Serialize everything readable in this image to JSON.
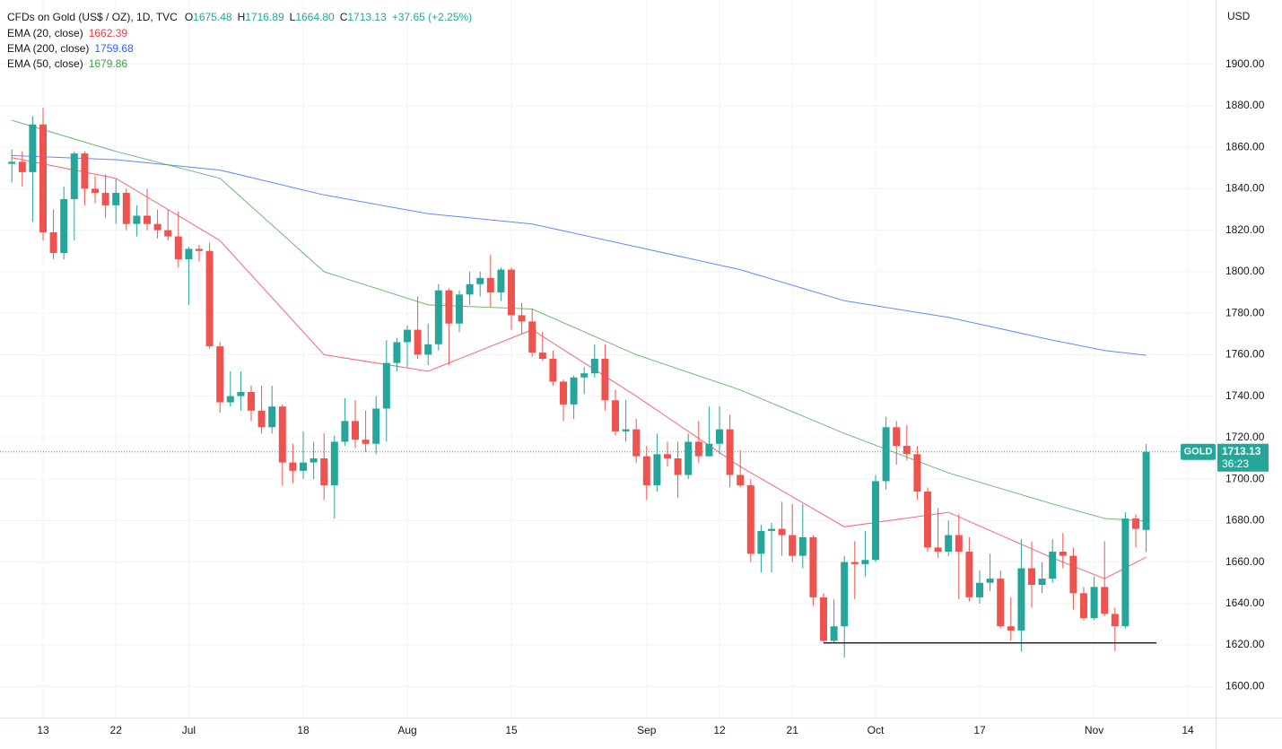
{
  "chart_data": {
    "type": "candlestick",
    "title": "CFDs on Gold (US$ / OZ), 1D, TVC",
    "legend_ohlc": [
      {
        "key": "O",
        "value": "1675.48"
      },
      {
        "key": "H",
        "value": "1716.89"
      },
      {
        "key": "L",
        "value": "1664.80"
      },
      {
        "key": "C",
        "value": "1713.13"
      }
    ],
    "change_label": "+37.65 (+2.25%)",
    "currency": "USD",
    "symbol_tag": "GOLD",
    "countdown": "36:23",
    "up_color": "#26a69a",
    "down_color": "#ef5350",
    "grid": true,
    "categories": [
      null,
      null,
      null,
      "13",
      null,
      null,
      null,
      null,
      null,
      null,
      "22",
      null,
      null,
      null,
      null,
      null,
      null,
      "Jul",
      null,
      null,
      null,
      null,
      null,
      null,
      null,
      null,
      null,
      null,
      "18",
      null,
      null,
      null,
      null,
      null,
      null,
      null,
      null,
      null,
      "Aug",
      null,
      null,
      null,
      null,
      null,
      null,
      null,
      null,
      null,
      "15",
      null,
      null,
      null,
      null,
      null,
      null,
      null,
      null,
      null,
      null,
      null,
      null,
      "Sep",
      null,
      null,
      null,
      null,
      null,
      null,
      "12",
      null,
      null,
      null,
      null,
      null,
      null,
      "21",
      null,
      null,
      null,
      null,
      null,
      null,
      null,
      "Oct",
      null,
      null,
      null,
      null,
      null,
      null,
      null,
      null,
      null,
      "17",
      null,
      null,
      null,
      null,
      null,
      null,
      null,
      null,
      null,
      null,
      "Nov",
      null,
      null,
      null,
      null,
      null,
      null,
      null,
      null,
      "14"
    ],
    "ohlc": [
      [
        1852,
        1859,
        1843,
        1853
      ],
      [
        1853,
        1858,
        1841,
        1848
      ],
      [
        1848,
        1875,
        1824,
        1871
      ],
      [
        1871,
        1879,
        1815,
        1819
      ],
      [
        1819,
        1830,
        1806,
        1809
      ],
      [
        1809,
        1841,
        1806,
        1835
      ],
      [
        1835,
        1858,
        1815,
        1857
      ],
      [
        1857,
        1858,
        1832,
        1840
      ],
      [
        1840,
        1846,
        1833,
        1838
      ],
      [
        1838,
        1847,
        1826,
        1832
      ],
      [
        1832,
        1845,
        1823,
        1838
      ],
      [
        1838,
        1840,
        1820,
        1823
      ],
      [
        1823,
        1832,
        1817,
        1827
      ],
      [
        1827,
        1840,
        1820,
        1823
      ],
      [
        1823,
        1830,
        1816,
        1820
      ],
      [
        1820,
        1830,
        1815,
        1817
      ],
      [
        1817,
        1829,
        1802,
        1806
      ],
      [
        1806,
        1812,
        1784,
        1811
      ],
      [
        1811,
        1813,
        1805,
        1810
      ],
      [
        1810,
        1814,
        1763,
        1764
      ],
      [
        1764,
        1766,
        1732,
        1737
      ],
      [
        1737,
        1752,
        1735,
        1740
      ],
      [
        1740,
        1752,
        1733,
        1742
      ],
      [
        1742,
        1745,
        1728,
        1733
      ],
      [
        1733,
        1745,
        1722,
        1725
      ],
      [
        1725,
        1745,
        1722,
        1735
      ],
      [
        1735,
        1736,
        1697,
        1708
      ],
      [
        1708,
        1717,
        1698,
        1704
      ],
      [
        1704,
        1723,
        1700,
        1708
      ],
      [
        1708,
        1718,
        1700,
        1710
      ],
      [
        1710,
        1722,
        1690,
        1697
      ],
      [
        1697,
        1721,
        1681,
        1718
      ],
      [
        1718,
        1739,
        1716,
        1728
      ],
      [
        1728,
        1738,
        1715,
        1719
      ],
      [
        1719,
        1733,
        1713,
        1717
      ],
      [
        1717,
        1740,
        1712,
        1734
      ],
      [
        1734,
        1767,
        1718,
        1756
      ],
      [
        1756,
        1768,
        1752,
        1766
      ],
      [
        1766,
        1774,
        1754,
        1772
      ],
      [
        1772,
        1788,
        1758,
        1760
      ],
      [
        1760,
        1775,
        1755,
        1765
      ],
      [
        1765,
        1794,
        1762,
        1791
      ],
      [
        1791,
        1792,
        1755,
        1775
      ],
      [
        1775,
        1791,
        1771,
        1789
      ],
      [
        1789,
        1800,
        1784,
        1794
      ],
      [
        1794,
        1800,
        1788,
        1797
      ],
      [
        1797,
        1808,
        1783,
        1790
      ],
      [
        1790,
        1802,
        1786,
        1801
      ],
      [
        1801,
        1802,
        1772,
        1779
      ],
      [
        1779,
        1785,
        1770,
        1776
      ],
      [
        1776,
        1782,
        1759,
        1761
      ],
      [
        1761,
        1771,
        1757,
        1758
      ],
      [
        1758,
        1762,
        1745,
        1747
      ],
      [
        1747,
        1748,
        1728,
        1736
      ],
      [
        1736,
        1750,
        1729,
        1749
      ],
      [
        1749,
        1754,
        1741,
        1751
      ],
      [
        1751,
        1765,
        1749,
        1758
      ],
      [
        1758,
        1765,
        1733,
        1738
      ],
      [
        1738,
        1743,
        1721,
        1723
      ],
      [
        1723,
        1738,
        1718,
        1724
      ],
      [
        1724,
        1729,
        1708,
        1711
      ],
      [
        1711,
        1716,
        1690,
        1697
      ],
      [
        1697,
        1722,
        1694,
        1712
      ],
      [
        1712,
        1718,
        1706,
        1710
      ],
      [
        1710,
        1718,
        1691,
        1702
      ],
      [
        1702,
        1722,
        1700,
        1718
      ],
      [
        1718,
        1728,
        1708,
        1711
      ],
      [
        1711,
        1735,
        1711,
        1717
      ],
      [
        1717,
        1735,
        1712,
        1724
      ],
      [
        1724,
        1731,
        1696,
        1702
      ],
      [
        1702,
        1714,
        1696,
        1697
      ],
      [
        1697,
        1700,
        1660,
        1664
      ],
      [
        1664,
        1678,
        1655,
        1675
      ],
      [
        1675,
        1679,
        1655,
        1676
      ],
      [
        1676,
        1689,
        1663,
        1673
      ],
      [
        1673,
        1688,
        1660,
        1663
      ],
      [
        1663,
        1688,
        1657,
        1672
      ],
      [
        1672,
        1673,
        1639,
        1643
      ],
      [
        1643,
        1645,
        1621,
        1622
      ],
      [
        1622,
        1642,
        1621,
        1629
      ],
      [
        1629,
        1663,
        1614,
        1660
      ],
      [
        1660,
        1670,
        1642,
        1659
      ],
      [
        1659,
        1675,
        1653,
        1661
      ],
      [
        1661,
        1702,
        1660,
        1699
      ],
      [
        1699,
        1730,
        1695,
        1725
      ],
      [
        1725,
        1728,
        1707,
        1716
      ],
      [
        1716,
        1726,
        1709,
        1712
      ],
      [
        1712,
        1716,
        1690,
        1694
      ],
      [
        1694,
        1696,
        1665,
        1667
      ],
      [
        1667,
        1686,
        1662,
        1665
      ],
      [
        1665,
        1680,
        1663,
        1673
      ],
      [
        1673,
        1683,
        1642,
        1665
      ],
      [
        1665,
        1672,
        1641,
        1643
      ],
      [
        1643,
        1656,
        1640,
        1650
      ],
      [
        1650,
        1664,
        1646,
        1652
      ],
      [
        1652,
        1656,
        1628,
        1629
      ],
      [
        1629,
        1643,
        1622,
        1627
      ],
      [
        1627,
        1671,
        1617,
        1657
      ],
      [
        1657,
        1670,
        1638,
        1649
      ],
      [
        1649,
        1660,
        1645,
        1652
      ],
      [
        1652,
        1671,
        1650,
        1665
      ],
      [
        1665,
        1674,
        1657,
        1663
      ],
      [
        1663,
        1667,
        1637,
        1645
      ],
      [
        1645,
        1648,
        1632,
        1633
      ],
      [
        1633,
        1653,
        1632,
        1648
      ],
      [
        1648,
        1670,
        1634,
        1635
      ],
      [
        1635,
        1638,
        1617,
        1629
      ],
      [
        1629,
        1684,
        1628,
        1681
      ],
      [
        1681,
        1683,
        1667,
        1676
      ],
      [
        1675.48,
        1716.89,
        1664.8,
        1713.13
      ],
      null,
      null,
      null,
      null
    ],
    "series": [
      {
        "name": "EMA (20, close)",
        "color": "#f23645",
        "x": [
          0,
          10,
          20,
          30,
          40,
          50,
          60,
          70,
          80,
          90,
          100,
          105,
          109
        ],
        "values": [
          1855,
          1845,
          1815,
          1760,
          1752,
          1772,
          1740,
          1706,
          1677,
          1684,
          1662,
          1652,
          1662.39
        ]
      },
      {
        "name": "EMA (200, close)",
        "color": "#2962ff",
        "x": [
          0,
          10,
          20,
          30,
          40,
          50,
          60,
          70,
          80,
          90,
          100,
          105,
          109
        ],
        "values": [
          1856,
          1854,
          1849,
          1837,
          1828,
          1823,
          1812,
          1801,
          1786,
          1778,
          1767,
          1762,
          1759.68
        ]
      },
      {
        "name": "EMA (50, close)",
        "color": "#43a047",
        "x": [
          0,
          10,
          20,
          30,
          40,
          50,
          60,
          70,
          80,
          90,
          100,
          105,
          109
        ],
        "values": [
          1873,
          1858,
          1845,
          1800,
          1784,
          1782,
          1760,
          1743,
          1722,
          1703,
          1688,
          1681,
          1679.86
        ]
      }
    ],
    "support_line": {
      "value": 1621,
      "from": 78,
      "to": 110
    },
    "ylim": [
      1585,
      1931
    ],
    "yticks": [
      {
        "value": 1600,
        "label": "1600.00"
      },
      {
        "value": 1620,
        "label": "1620.00"
      },
      {
        "value": 1640,
        "label": "1640.00"
      },
      {
        "value": 1660,
        "label": "1660.00"
      },
      {
        "value": 1680,
        "label": "1680.00"
      },
      {
        "value": 1700,
        "label": "1700.00"
      },
      {
        "value": 1720,
        "label": "1720.00"
      },
      {
        "value": 1740,
        "label": "1740.00"
      },
      {
        "value": 1760,
        "label": "1760.00"
      },
      {
        "value": 1780,
        "label": "1780.00"
      },
      {
        "value": 1800,
        "label": "1800.00"
      },
      {
        "value": 1820,
        "label": "1820.00"
      },
      {
        "value": 1840,
        "label": "1840.00"
      },
      {
        "value": 1860,
        "label": "1860.00"
      },
      {
        "value": 1880,
        "label": "1880.00"
      },
      {
        "value": 1900,
        "label": "1900.00"
      }
    ]
  }
}
